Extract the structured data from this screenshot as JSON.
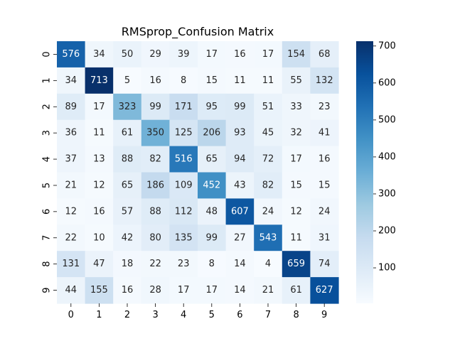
{
  "chart_data": {
    "type": "heatmap",
    "title": "RMSprop_Confusion Matrix",
    "xlabel": "",
    "ylabel": "",
    "x_categories": [
      "0",
      "1",
      "2",
      "3",
      "4",
      "5",
      "6",
      "7",
      "8",
      "9"
    ],
    "y_categories": [
      "0",
      "1",
      "2",
      "3",
      "4",
      "5",
      "6",
      "7",
      "8",
      "9"
    ],
    "values": [
      [
        576,
        34,
        50,
        29,
        39,
        17,
        16,
        17,
        154,
        68
      ],
      [
        34,
        713,
        5,
        16,
        8,
        15,
        11,
        11,
        55,
        132
      ],
      [
        89,
        17,
        323,
        99,
        171,
        95,
        99,
        51,
        33,
        23
      ],
      [
        36,
        11,
        61,
        350,
        125,
        206,
        93,
        45,
        32,
        41
      ],
      [
        37,
        13,
        88,
        82,
        516,
        65,
        94,
        72,
        17,
        16
      ],
      [
        21,
        12,
        65,
        186,
        109,
        452,
        43,
        82,
        15,
        15
      ],
      [
        12,
        16,
        57,
        88,
        112,
        48,
        607,
        24,
        12,
        24
      ],
      [
        22,
        10,
        42,
        80,
        135,
        99,
        27,
        543,
        11,
        31
      ],
      [
        131,
        47,
        18,
        22,
        23,
        8,
        14,
        4,
        659,
        74
      ],
      [
        44,
        155,
        16,
        28,
        17,
        17,
        14,
        21,
        61,
        627
      ]
    ],
    "colormap": "Blues",
    "colorbar": {
      "min": 4,
      "max": 713,
      "ticks": [
        100,
        200,
        300,
        400,
        500,
        600,
        700
      ]
    },
    "grid": false,
    "legend": "colorbar-right"
  }
}
